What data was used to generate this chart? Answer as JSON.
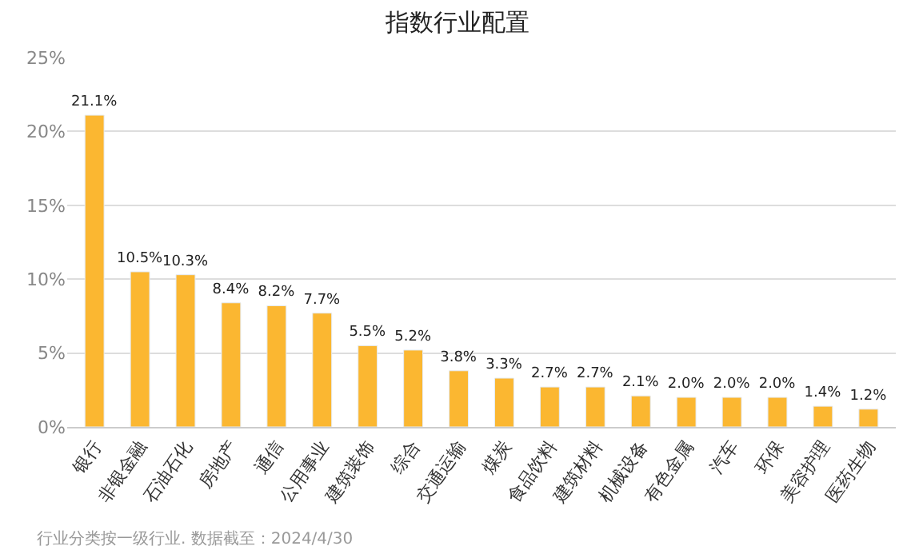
{
  "chart_data": {
    "type": "bar",
    "title": "指数行业配置",
    "categories": [
      "银行",
      "非银金融",
      "石油石化",
      "房地产",
      "通信",
      "公用事业",
      "建筑装饰",
      "综合",
      "交通运输",
      "煤炭",
      "食品饮料",
      "建筑材料",
      "机械设备",
      "有色金属",
      "汽车",
      "环保",
      "美容护理",
      "医药生物"
    ],
    "values": [
      21.1,
      10.5,
      10.3,
      8.4,
      8.2,
      7.7,
      5.5,
      5.2,
      3.8,
      3.3,
      2.7,
      2.7,
      2.1,
      2.0,
      2.0,
      2.0,
      1.4,
      1.2
    ],
    "value_labels": [
      "21.1%",
      "10.5%",
      "10.3%",
      "8.4%",
      "8.2%",
      "7.7%",
      "5.5%",
      "5.2%",
      "3.8%",
      "3.3%",
      "2.7%",
      "2.7%",
      "2.1%",
      "2.0%",
      "2.0%",
      "2.0%",
      "1.4%",
      "1.2%"
    ],
    "color": "#fbb731",
    "ylim": [
      0,
      25
    ],
    "yticks": [
      {
        "value": 0,
        "label": "0%"
      },
      {
        "value": 5,
        "label": "5%"
      },
      {
        "value": 10,
        "label": "10%"
      },
      {
        "value": 15,
        "label": "15%"
      },
      {
        "value": 20,
        "label": "20%"
      },
      {
        "value": 25,
        "label": "25%"
      }
    ],
    "grid": "y",
    "annotations": [
      "行业分类按一级行业. 数据截至：2024/4/30"
    ]
  }
}
